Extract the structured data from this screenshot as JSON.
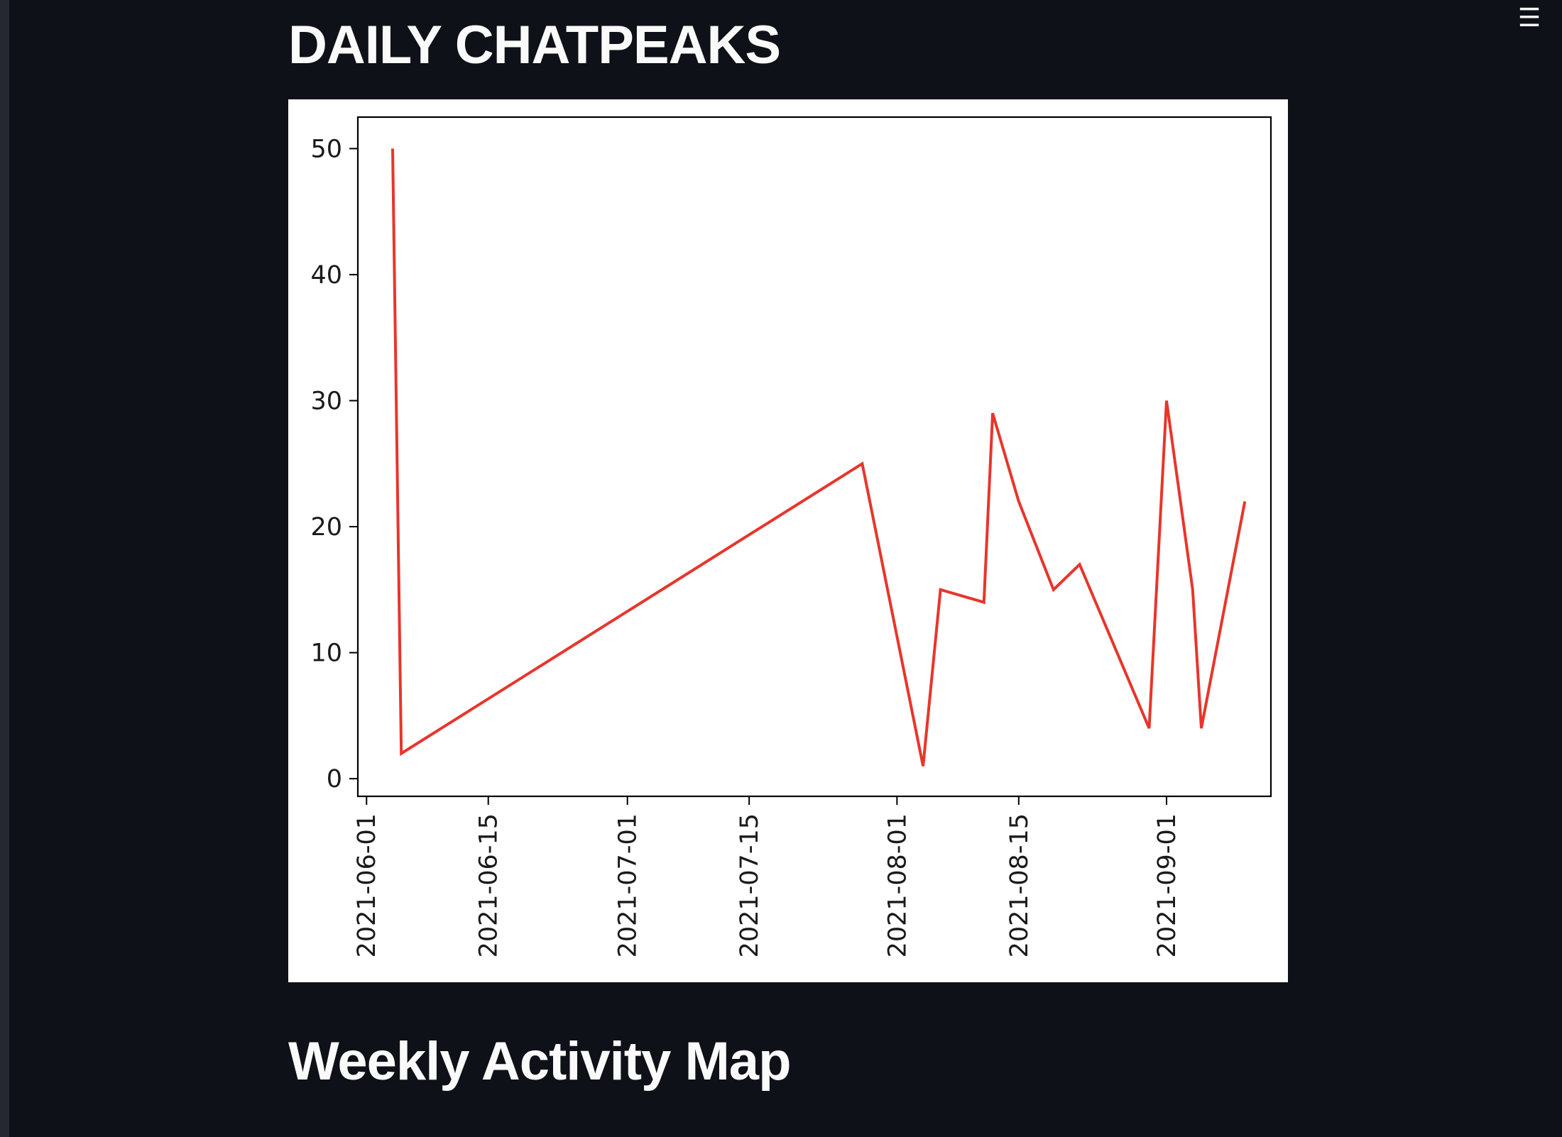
{
  "page": {
    "menu_icon": "hamburger-menu-icon",
    "menu_glyph": "☰",
    "background_color": "#0e1117"
  },
  "headings": {
    "daily": "DAILY CHATPEAKS",
    "weekly": "Weekly Activity Map"
  },
  "chart_data": {
    "type": "line",
    "title": "",
    "xlabel": "",
    "ylabel": "",
    "x_axis_type": "date",
    "x": [
      "2021-06-04",
      "2021-06-05",
      "2021-07-28",
      "2021-08-04",
      "2021-08-06",
      "2021-08-11",
      "2021-08-12",
      "2021-08-15",
      "2021-08-19",
      "2021-08-22",
      "2021-08-30",
      "2021-09-01",
      "2021-09-04",
      "2021-09-05",
      "2021-09-10"
    ],
    "y": [
      50,
      2,
      25,
      1,
      15,
      14,
      29,
      22,
      15,
      17,
      4,
      30,
      15,
      4,
      22
    ],
    "xlim": [
      "2021-05-31",
      "2021-09-13"
    ],
    "ylim": [
      -1.4,
      52.5
    ],
    "x_ticks": [
      "2021-06-01",
      "2021-06-15",
      "2021-07-01",
      "2021-07-15",
      "2021-08-01",
      "2021-08-15",
      "2021-09-01"
    ],
    "y_ticks": [
      0,
      10,
      20,
      30,
      40,
      50
    ],
    "line_color": "#e8352b",
    "grid": false,
    "legend": "none"
  }
}
